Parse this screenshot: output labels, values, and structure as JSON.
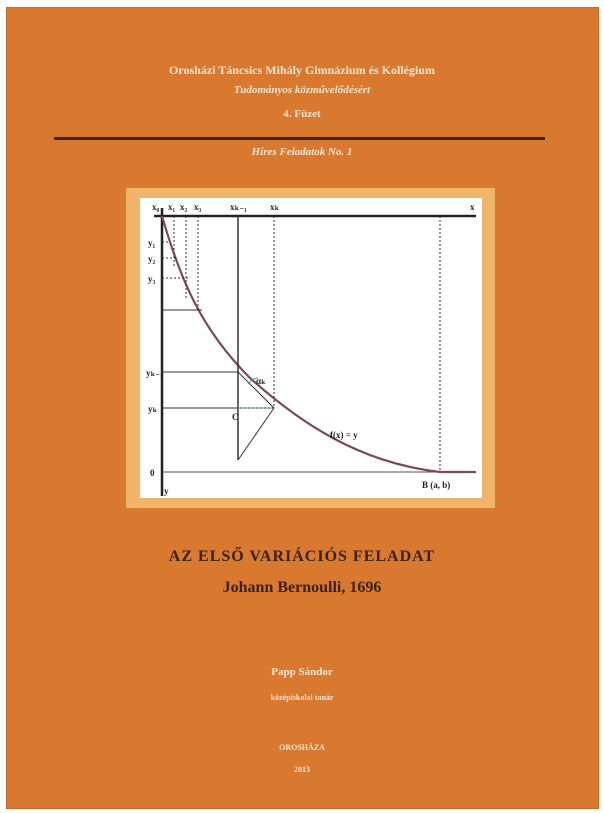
{
  "cover": {
    "school": "Orosházi Táncsics Mihály Gimnázium és Kollégium",
    "series": "Tudományos közművelődésért",
    "issue": "4. Füzet",
    "famous": "Híres Feladatok No. 1",
    "title": "AZ ELSŐ VARIÁCIÓS FELADAT",
    "subtitle": "Johann Bernoulli, 1696",
    "author": "Papp Sándor",
    "author_role": "középiskolai tanár",
    "city": "OROSHÁZA",
    "year": "2013"
  },
  "figure": {
    "x_labels": [
      "x₀",
      "x₁",
      "x₂",
      "x₃",
      "xₖ₋₁",
      "xₖ",
      "x"
    ],
    "y_labels": [
      "y₁",
      "y₂",
      "y₃",
      "yₖ₋₁",
      "yₖ"
    ],
    "point_o": "0",
    "point_y": "y",
    "curve_label": "f(x) = y",
    "point_b": "B (a, b)",
    "angle_label": "αₖ",
    "point_c": "C",
    "colors": {
      "curve": "#7b4a5a",
      "cover": "#d9782f",
      "frame": "#f0b46b"
    }
  }
}
